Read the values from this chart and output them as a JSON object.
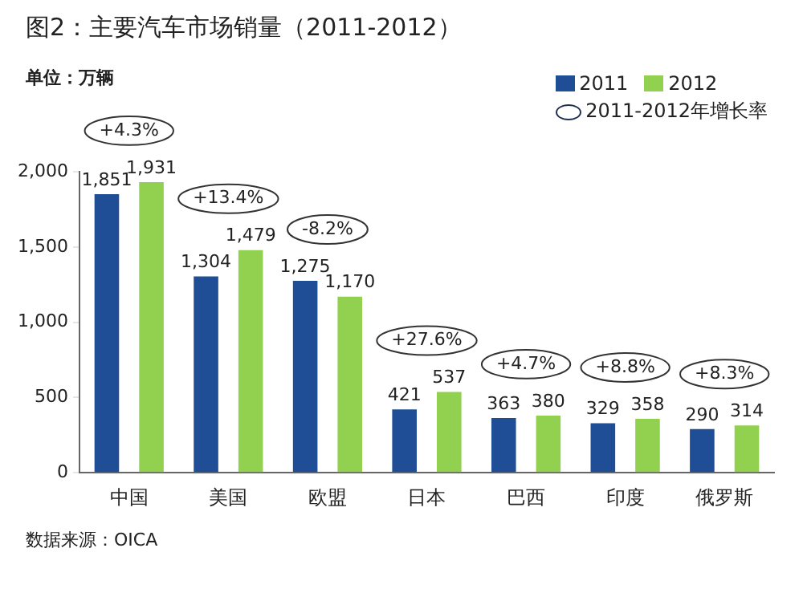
{
  "chart_data": {
    "type": "bar",
    "title": "图2：主要汽车市场销量（2011-2012）",
    "ylabel": "单位：万辆",
    "categories": [
      "中国",
      "美国",
      "欧盟",
      "日本",
      "巴西",
      "印度",
      "俄罗斯"
    ],
    "series": [
      {
        "name": "2011",
        "color": "#1f4e96",
        "values": [
          1851,
          1304,
          1275,
          421,
          363,
          329,
          290
        ],
        "value_labels": [
          "1,851",
          "1,304",
          "1,275",
          "421",
          "363",
          "329",
          "290"
        ]
      },
      {
        "name": "2012",
        "color": "#92d050",
        "values": [
          1931,
          1479,
          1170,
          537,
          380,
          358,
          314
        ],
        "value_labels": [
          "1,931",
          "1,479",
          "1,170",
          "537",
          "380",
          "358",
          "314"
        ]
      }
    ],
    "ylim": [
      0,
      2000
    ],
    "yticks": [
      0,
      {
        "value": 500,
        "label": "500"
      },
      {
        "value": 1000,
        "label": "1,000"
      },
      {
        "value": 1500,
        "label": "1,500"
      },
      {
        "value": 2000,
        "label": "2,000"
      }
    ],
    "grid": false,
    "legend": "top right",
    "annotations": [
      "+4.3%",
      "+13.4%",
      "-8.2%",
      "+27.6%",
      "+4.7%",
      "+8.8%",
      "+8.3%",
      "2011-2012年增长率",
      "数据来源：OICA"
    ]
  }
}
